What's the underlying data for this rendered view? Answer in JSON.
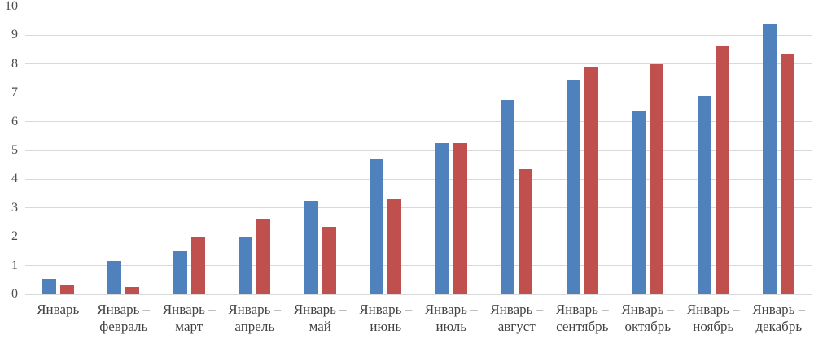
{
  "chart_data": {
    "type": "bar",
    "title": "",
    "xlabel": "",
    "ylabel": "",
    "categories": [
      "Январь",
      "Январь – февраль",
      "Январь – март",
      "Январь – апрель",
      "Январь – май",
      "Январь – июнь",
      "Январь – июль",
      "Январь – август",
      "Январь – сентябрь",
      "Январь – октябрь",
      "Январь – ноябрь",
      "Январь – декабрь"
    ],
    "category_label_lines": [
      [
        "Январь"
      ],
      [
        "Январь –",
        "февраль"
      ],
      [
        "Январь –",
        "март"
      ],
      [
        "Январь –",
        "апрель"
      ],
      [
        "Январь –",
        "май"
      ],
      [
        "Январь –",
        "июнь"
      ],
      [
        "Январь –",
        "июль"
      ],
      [
        "Январь –",
        "август"
      ],
      [
        "Январь –",
        "сентябрь"
      ],
      [
        "Январь –",
        "октябрь"
      ],
      [
        "Январь –",
        "ноябрь"
      ],
      [
        "Январь –",
        "декабрь"
      ]
    ],
    "series": [
      {
        "name": "blue",
        "color": "#4F81BD",
        "values": [
          0.55,
          1.15,
          1.5,
          2.0,
          3.25,
          4.7,
          5.25,
          6.75,
          7.45,
          6.35,
          6.9,
          9.4
        ]
      },
      {
        "name": "red",
        "color": "#C0504D",
        "values": [
          0.35,
          0.25,
          2.0,
          2.6,
          2.35,
          3.3,
          5.25,
          4.35,
          7.9,
          8.0,
          8.65,
          8.35
        ]
      }
    ],
    "ylim": [
      0,
      10
    ],
    "yticks": [
      "0",
      "1",
      "2",
      "3",
      "4",
      "5",
      "6",
      "7",
      "8",
      "9",
      "10"
    ],
    "grid": true,
    "legend": false,
    "gridline_color": "#d9d9d9",
    "axis_text_color": "#4d4d4d"
  }
}
